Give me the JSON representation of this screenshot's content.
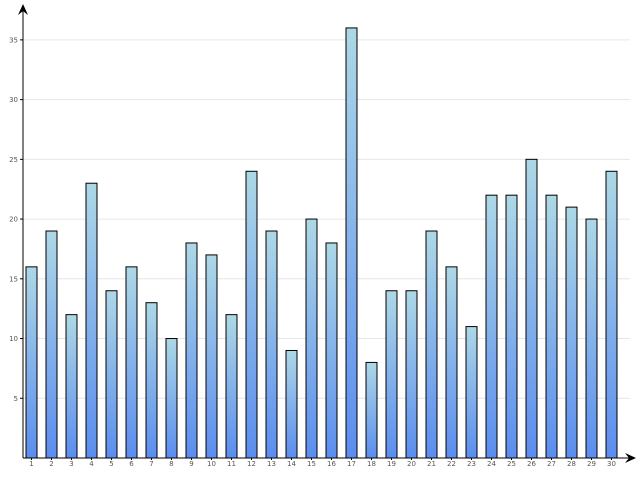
{
  "chart_data": {
    "type": "bar",
    "categories": [
      "1",
      "2",
      "3",
      "4",
      "5",
      "6",
      "7",
      "8",
      "9",
      "10",
      "11",
      "12",
      "13",
      "14",
      "15",
      "16",
      "17",
      "18",
      "19",
      "20",
      "21",
      "22",
      "23",
      "24",
      "25",
      "26",
      "27",
      "28",
      "29",
      "30"
    ],
    "values": [
      16,
      19,
      12,
      23,
      14,
      16,
      13,
      10,
      18,
      17,
      12,
      24,
      19,
      9,
      20,
      18,
      36,
      8,
      14,
      14,
      19,
      16,
      11,
      22,
      22,
      25,
      22,
      21,
      20,
      24
    ],
    "yticks": [
      "5",
      "10",
      "15",
      "20",
      "25",
      "30",
      "35"
    ],
    "ylim": [
      0,
      37.5
    ],
    "grid": true,
    "colors": {
      "bar_top": "#add8e6",
      "bar_bottom": "#5b8def",
      "grid": "#e6e6e6",
      "axis": "#000000"
    }
  }
}
